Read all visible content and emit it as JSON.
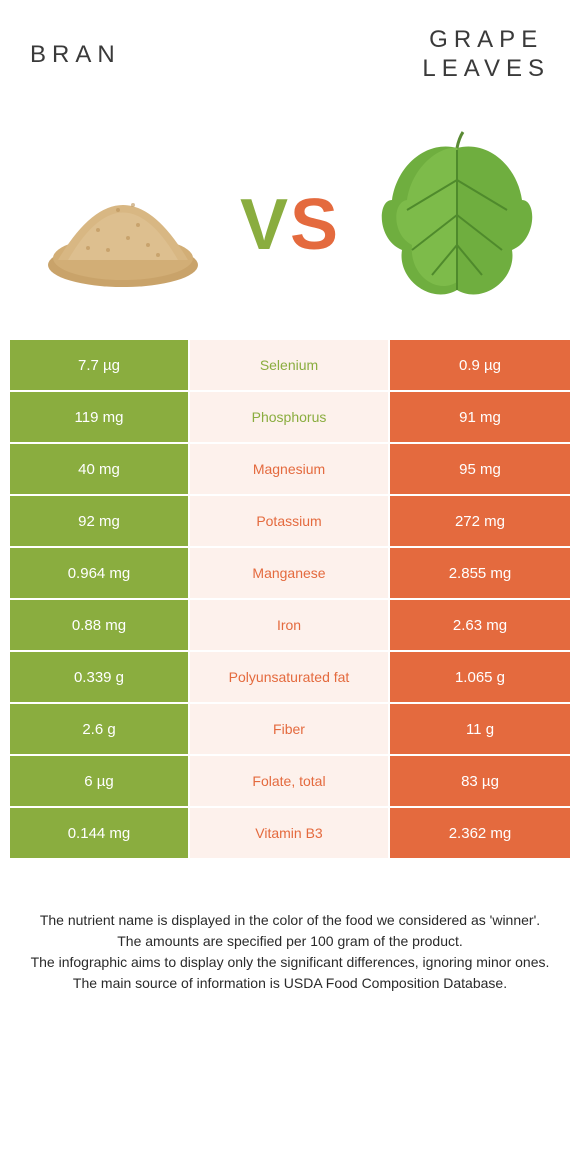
{
  "colors": {
    "left_bar": "#8aad3f",
    "right_bar": "#e46a3e",
    "mid_bg": "#fdf1ec",
    "text_dark": "#2a2a2a"
  },
  "header": {
    "left_title": "Bran",
    "right_title_line1": "Grape",
    "right_title_line2": "leaves"
  },
  "vs": {
    "v": "V",
    "s": "S"
  },
  "images": {
    "left_alt": "bran-pile",
    "right_alt": "grape-leaf"
  },
  "rows": [
    {
      "left": "7.7 µg",
      "name": "Selenium",
      "right": "0.9 µg",
      "winner": "left"
    },
    {
      "left": "119 mg",
      "name": "Phosphorus",
      "right": "91 mg",
      "winner": "left"
    },
    {
      "left": "40 mg",
      "name": "Magnesium",
      "right": "95 mg",
      "winner": "right"
    },
    {
      "left": "92 mg",
      "name": "Potassium",
      "right": "272 mg",
      "winner": "right"
    },
    {
      "left": "0.964 mg",
      "name": "Manganese",
      "right": "2.855 mg",
      "winner": "right"
    },
    {
      "left": "0.88 mg",
      "name": "Iron",
      "right": "2.63 mg",
      "winner": "right"
    },
    {
      "left": "0.339 g",
      "name": "Polyunsaturated fat",
      "right": "1.065 g",
      "winner": "right"
    },
    {
      "left": "2.6 g",
      "name": "Fiber",
      "right": "11 g",
      "winner": "right"
    },
    {
      "left": "6 µg",
      "name": "Folate, total",
      "right": "83 µg",
      "winner": "right"
    },
    {
      "left": "0.144 mg",
      "name": "Vitamin B3",
      "right": "2.362 mg",
      "winner": "right"
    }
  ],
  "footer": {
    "line1": "The nutrient name is displayed in the color of the food we considered as 'winner'.",
    "line2": "The amounts are specified per 100 gram of the product.",
    "line3": "The infographic aims to display only the significant differences, ignoring minor ones.",
    "line4": "The main source of information is USDA Food Composition Database."
  }
}
